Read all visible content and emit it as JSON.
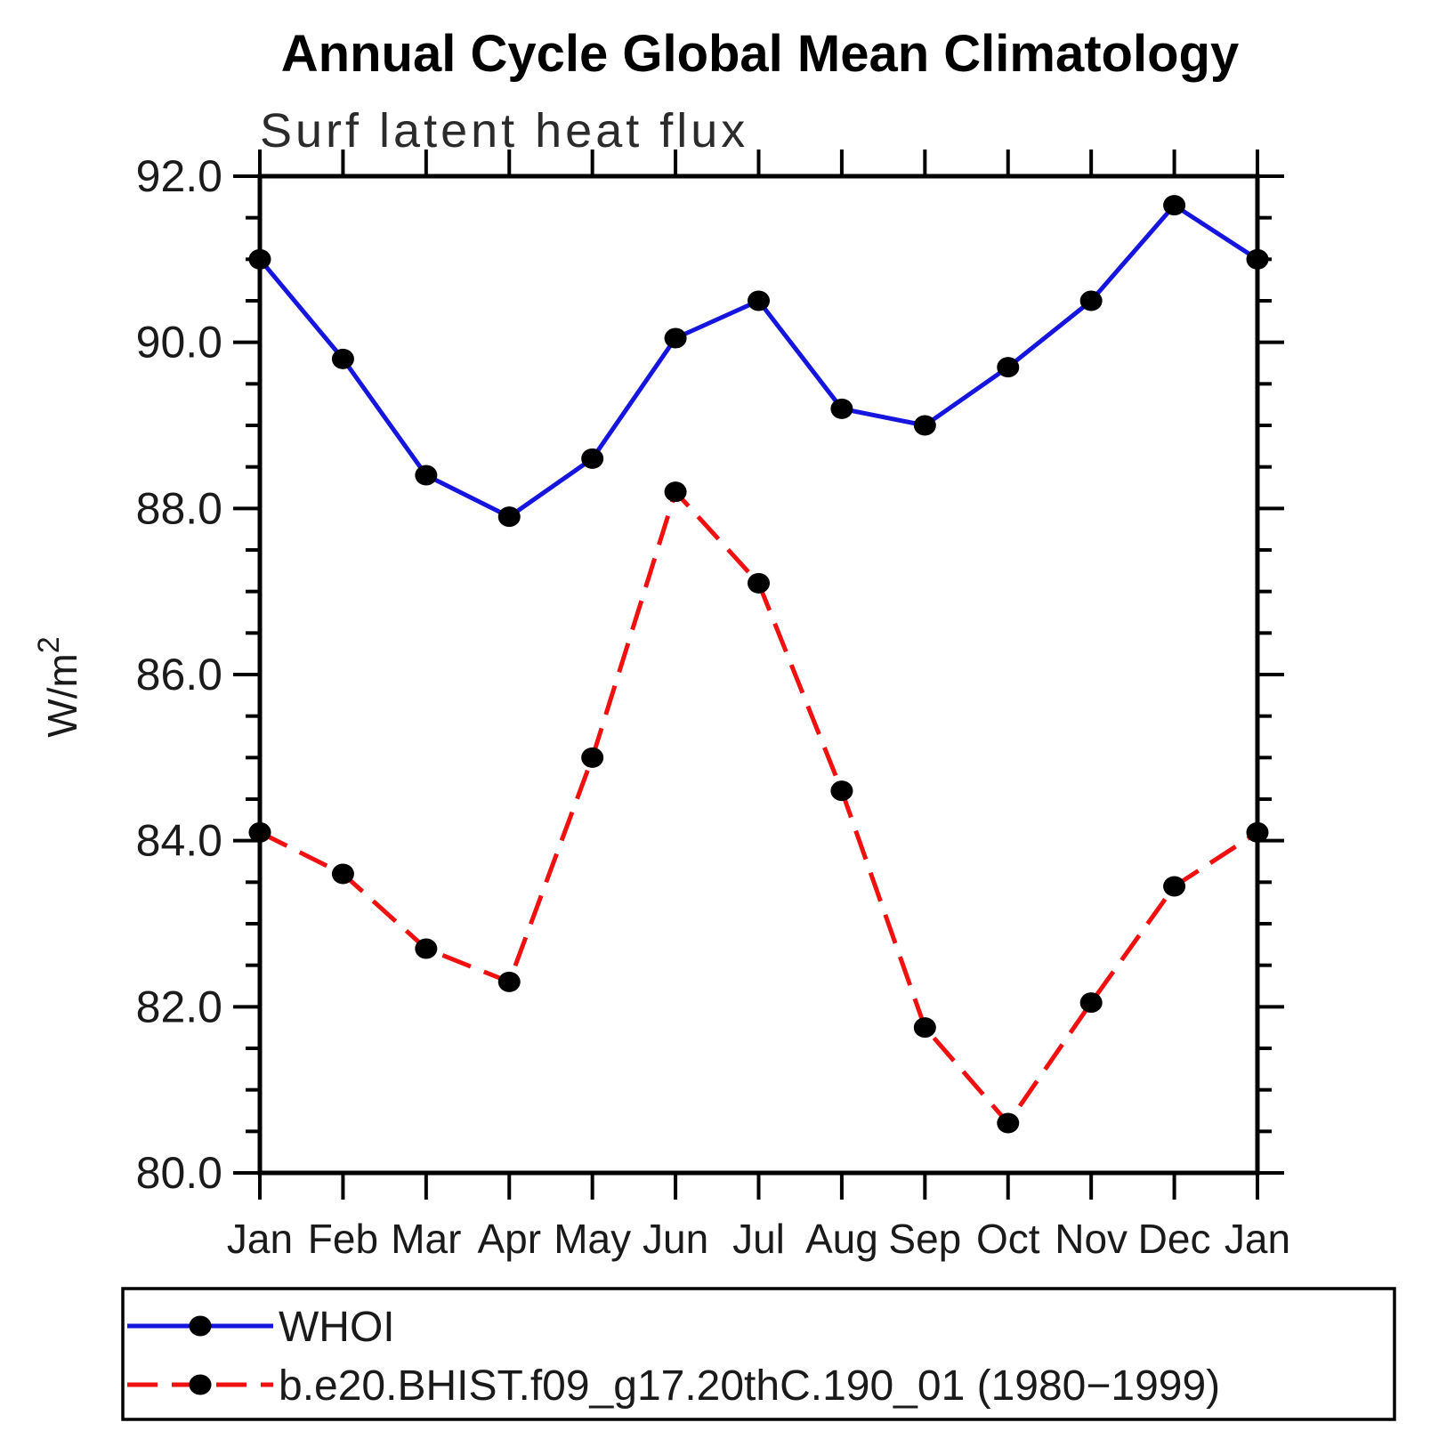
{
  "chart_data": {
    "type": "line",
    "title": "Annual Cycle Global Mean Climatology",
    "subtitle": "Surf latent heat flux",
    "ylabel_main": "W/m",
    "ylabel_sup": "2",
    "categories": [
      "Jan",
      "Feb",
      "Mar",
      "Apr",
      "May",
      "Jun",
      "Jul",
      "Aug",
      "Sep",
      "Oct",
      "Nov",
      "Dec",
      "Jan"
    ],
    "ylim": [
      80.0,
      92.0
    ],
    "ytick_major_step": 2.0,
    "ytick_minor_step": 0.5,
    "ytick_label_format": "one_decimal",
    "grid": false,
    "legend_position": "bottom",
    "marker_color": "#000000",
    "series": [
      {
        "name": "WHOI",
        "color": "#1515dd",
        "line_style": "solid",
        "values": [
          91.0,
          89.8,
          88.4,
          87.9,
          88.6,
          90.05,
          90.5,
          89.2,
          89.0,
          89.7,
          90.5,
          91.65,
          91.0
        ]
      },
      {
        "name": "b.e20.BHIST.f09_g17.20thC.190_01 (1980−1999)",
        "color": "#f01010",
        "line_style": "dashed",
        "values": [
          84.1,
          83.6,
          82.7,
          82.3,
          85.0,
          88.2,
          87.1,
          84.6,
          81.75,
          80.6,
          82.05,
          83.45,
          84.1
        ]
      }
    ]
  }
}
